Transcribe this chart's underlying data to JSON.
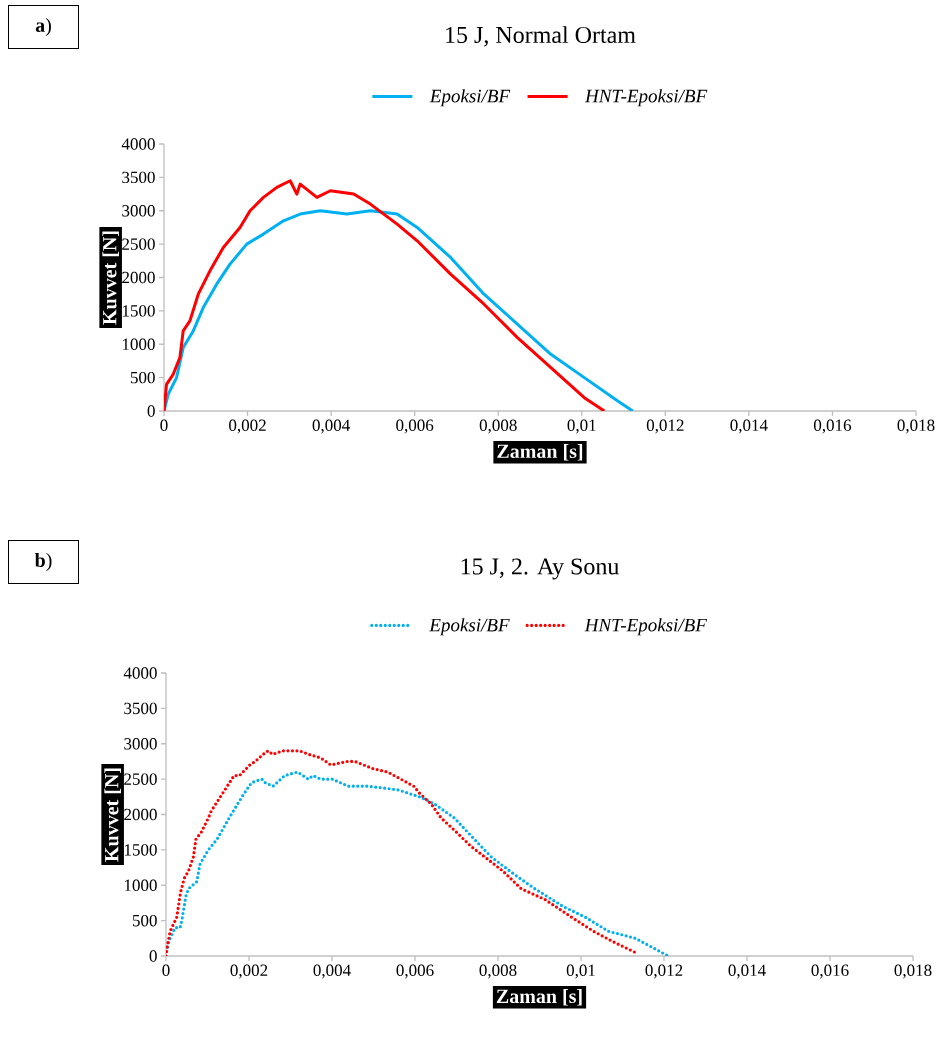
{
  "chart_data": [
    {
      "type": "line",
      "title": "15 J, Normal Ortam",
      "xlabel": "Zaman [s]",
      "ylabel": "Kuvvet [N]",
      "annotations": [
        "**a**)"
      ],
      "xlim": [
        0,
        0.018
      ],
      "ylim": [
        0,
        4000
      ],
      "xticks": [
        0,
        {
          "value": 0.002,
          "label": "0,002"
        },
        {
          "value": 0.004,
          "label": "0,004"
        },
        {
          "value": 0.006,
          "label": "0,006"
        },
        {
          "value": 0.008,
          "label": "0,008"
        },
        {
          "value": 0.01,
          "label": "0,01"
        },
        {
          "value": 0.012,
          "label": "0,012"
        },
        {
          "value": 0.014,
          "label": "0,014"
        },
        {
          "value": 0.016,
          "label": "0,016"
        },
        {
          "value": 0.018,
          "label": "0,018"
        }
      ],
      "yticks": [
        0,
        500,
        1000,
        1500,
        2000,
        2500,
        3000,
        3500,
        4000
      ],
      "grid": false,
      "legend": "top",
      "line_style": "solid",
      "series": [
        {
          "name": "Epoksi/BF",
          "color": "#00b0f0",
          "x": [
            0,
            0.0001,
            0.0003,
            0.00046,
            0.0007,
            0.00094,
            0.00126,
            0.00158,
            0.00198,
            0.00238,
            0.00286,
            0.00326,
            0.00374,
            0.00438,
            0.00494,
            0.00558,
            0.00606,
            0.00686,
            0.00766,
            0.00846,
            0.00926,
            0.01006,
            0.01086,
            0.01122
          ],
          "values": [
            0,
            250,
            500,
            950,
            1200,
            1550,
            1900,
            2200,
            2500,
            2650,
            2850,
            2950,
            3000,
            2950,
            3000,
            2950,
            2750,
            2300,
            1750,
            1300,
            850,
            500,
            150,
            0
          ]
        },
        {
          "name": "HNT-Epoksi/BF",
          "color": "#ff0000",
          "x": [
            0,
            6e-05,
            0.00022,
            0.00038,
            0.00046,
            0.00062,
            0.00082,
            0.0011,
            0.00142,
            0.00182,
            0.00206,
            0.00238,
            0.0027,
            0.00302,
            0.00318,
            0.00326,
            0.00366,
            0.00398,
            0.00454,
            0.00494,
            0.00558,
            0.00606,
            0.00686,
            0.00766,
            0.00846,
            0.00926,
            0.01006,
            0.01054
          ],
          "values": [
            0,
            400,
            550,
            800,
            1200,
            1350,
            1750,
            2100,
            2450,
            2750,
            3000,
            3200,
            3350,
            3450,
            3250,
            3400,
            3200,
            3300,
            3250,
            3100,
            2800,
            2550,
            2050,
            1600,
            1100,
            650,
            200,
            0
          ]
        }
      ]
    },
    {
      "type": "line",
      "title": "15 J, 2. Ay Sonu",
      "xlabel": "Zaman [s]",
      "ylabel": "Kuvvet [N]",
      "annotations": [
        "**b**)"
      ],
      "xlim": [
        0,
        0.018
      ],
      "ylim": [
        0,
        4000
      ],
      "xticks": [
        0,
        {
          "value": 0.002,
          "label": "0,002"
        },
        {
          "value": 0.004,
          "label": "0,004"
        },
        {
          "value": 0.006,
          "label": "0,006"
        },
        {
          "value": 0.008,
          "label": "0,008"
        },
        {
          "value": 0.01,
          "label": "0,01"
        },
        {
          "value": 0.012,
          "label": "0,012"
        },
        {
          "value": 0.014,
          "label": "0,014"
        },
        {
          "value": 0.016,
          "label": "0,016"
        },
        {
          "value": 0.018,
          "label": "0,018"
        }
      ],
      "yticks": [
        0,
        500,
        1000,
        1500,
        2000,
        2500,
        3000,
        3500,
        4000
      ],
      "grid": false,
      "legend": "top",
      "line_style": "dotted",
      "series": [
        {
          "name": "Epoksi/BF",
          "color": "#00b0f0",
          "x": [
            0,
            6e-05,
            0.00022,
            0.00034,
            0.00038,
            0.00048,
            0.00054,
            0.00074,
            0.00082,
            0.00102,
            0.00123,
            0.00152,
            0.00183,
            0.00206,
            0.00231,
            0.00239,
            0.00258,
            0.00286,
            0.00317,
            0.00343,
            0.00354,
            0.00373,
            0.00401,
            0.00439,
            0.00486,
            0.00558,
            0.00611,
            0.00647,
            0.00695,
            0.00735,
            0.00784,
            0.0084,
            0.00889,
            0.00957,
            0.0101,
            0.01066,
            0.01131,
            0.01163,
            0.0121
          ],
          "values": [
            0,
            200,
            400,
            400,
            500,
            850,
            950,
            1050,
            1300,
            1500,
            1650,
            1950,
            2250,
            2450,
            2500,
            2450,
            2400,
            2550,
            2600,
            2500,
            2550,
            2500,
            2500,
            2400,
            2400,
            2350,
            2250,
            2150,
            1950,
            1700,
            1400,
            1150,
            950,
            700,
            550,
            350,
            250,
            150,
            0
          ]
        },
        {
          "name": "HNT-Epoksi/BF",
          "color": "#ff0000",
          "x": [
            0,
            2e-05,
            0.0001,
            0.00026,
            0.00035,
            0.00044,
            0.00054,
            0.00066,
            0.00072,
            0.00085,
            0.00102,
            0.00109,
            0.00131,
            0.00153,
            0.00164,
            0.00177,
            0.00202,
            0.00215,
            0.00234,
            0.00246,
            0.00257,
            0.00281,
            0.00292,
            0.00322,
            0.00344,
            0.00373,
            0.00397,
            0.00437,
            0.00455,
            0.00498,
            0.00534,
            0.00566,
            0.00597,
            0.00611,
            0.00639,
            0.00663,
            0.00691,
            0.00735,
            0.00768,
            0.00812,
            0.00856,
            0.00913,
            0.00977,
            0.0103,
            0.01078,
            0.01131
          ],
          "values": [
            0,
            100,
            350,
            550,
            900,
            1100,
            1200,
            1400,
            1650,
            1750,
            1950,
            2050,
            2250,
            2450,
            2550,
            2550,
            2700,
            2750,
            2850,
            2900,
            2850,
            2900,
            2900,
            2900,
            2850,
            2800,
            2700,
            2750,
            2750,
            2650,
            2600,
            2500,
            2400,
            2300,
            2150,
            1950,
            1800,
            1550,
            1400,
            1200,
            950,
            800,
            550,
            350,
            200,
            50
          ]
        }
      ]
    }
  ]
}
